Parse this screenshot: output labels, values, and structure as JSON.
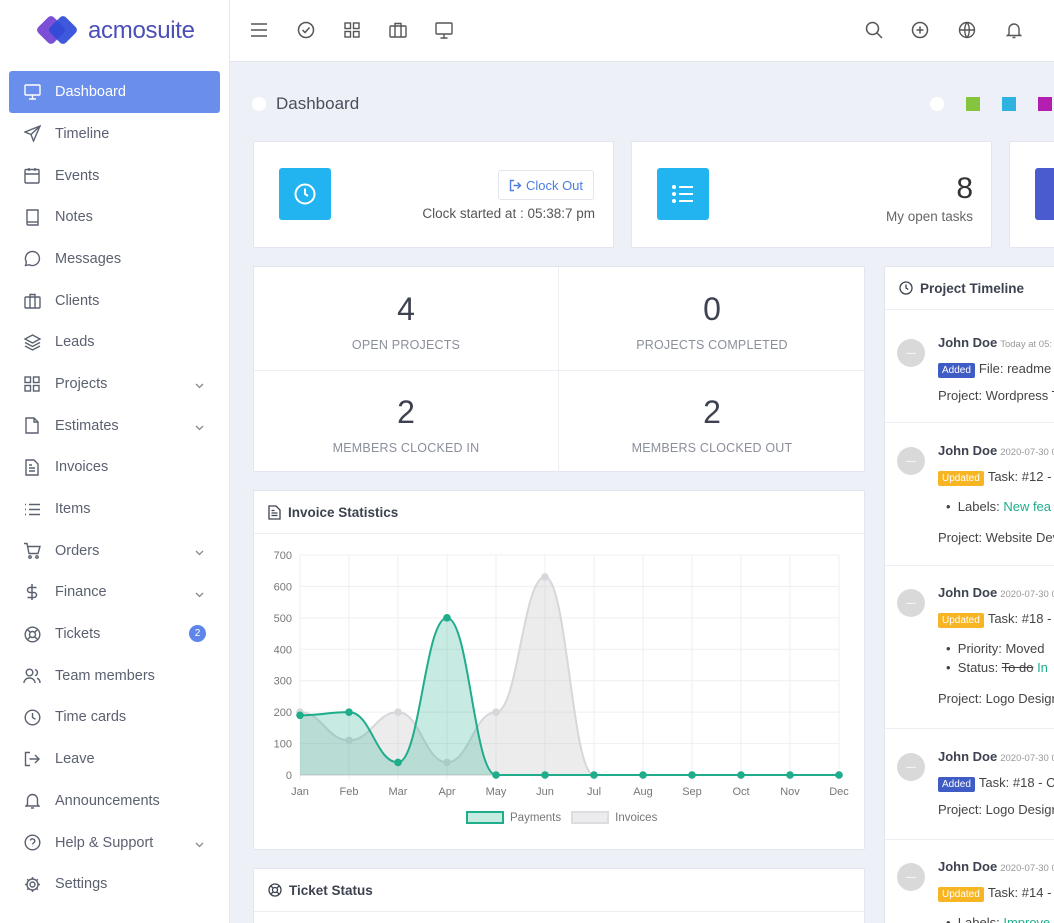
{
  "brand": {
    "name": "acmosuite",
    "colors": [
      "#7b4fd6",
      "#2e4bd8"
    ]
  },
  "sidebar": {
    "items": [
      {
        "label": "Dashboard",
        "icon": "monitor-icon",
        "active": true
      },
      {
        "label": "Timeline",
        "icon": "send-icon"
      },
      {
        "label": "Events",
        "icon": "calendar-icon"
      },
      {
        "label": "Notes",
        "icon": "book-icon"
      },
      {
        "label": "Messages",
        "icon": "chat-icon"
      },
      {
        "label": "Clients",
        "icon": "briefcase-icon"
      },
      {
        "label": "Leads",
        "icon": "layers-icon"
      },
      {
        "label": "Projects",
        "icon": "grid-icon",
        "chevron": true
      },
      {
        "label": "Estimates",
        "icon": "file-icon",
        "chevron": true
      },
      {
        "label": "Invoices",
        "icon": "file-text-icon"
      },
      {
        "label": "Items",
        "icon": "list-icon"
      },
      {
        "label": "Orders",
        "icon": "cart-icon",
        "chevron": true
      },
      {
        "label": "Finance",
        "icon": "dollar-icon",
        "chevron": true
      },
      {
        "label": "Tickets",
        "icon": "lifebuoy-icon",
        "badge": "2"
      },
      {
        "label": "Team members",
        "icon": "users-icon"
      },
      {
        "label": "Time cards",
        "icon": "clock-icon"
      },
      {
        "label": "Leave",
        "icon": "log-out-icon"
      },
      {
        "label": "Announcements",
        "icon": "bell-icon"
      },
      {
        "label": "Help & Support",
        "icon": "help-icon",
        "chevron": true
      },
      {
        "label": "Settings",
        "icon": "settings-icon"
      }
    ]
  },
  "page": {
    "title": "Dashboard",
    "theme_colors": [
      "#ffffff",
      "#86c440",
      "#2eb3e0",
      "#b21fb0"
    ]
  },
  "clock_card": {
    "button": "Clock Out",
    "status": "Clock started at : 05:38:7 pm"
  },
  "tasks_card": {
    "count": "8",
    "label": "My open tasks"
  },
  "stats": [
    {
      "value": "4",
      "label": "OPEN PROJECTS"
    },
    {
      "value": "0",
      "label": "PROJECTS COMPLETED"
    },
    {
      "value": "2",
      "label": "MEMBERS CLOCKED IN"
    },
    {
      "value": "2",
      "label": "MEMBERS CLOCKED OUT"
    }
  ],
  "invoice_stats": {
    "title": "Invoice Statistics"
  },
  "ticket_status": {
    "title": "Ticket Status"
  },
  "chart_data": {
    "type": "area",
    "categories": [
      "Jan",
      "Feb",
      "Mar",
      "Apr",
      "May",
      "Jun",
      "Jul",
      "Aug",
      "Sep",
      "Oct",
      "Nov",
      "Dec"
    ],
    "series": [
      {
        "name": "Payments",
        "values": [
          190,
          200,
          40,
          500,
          0,
          0,
          0,
          0,
          0,
          0,
          0,
          0
        ],
        "color": "#1fad8c"
      },
      {
        "name": "Invoices",
        "values": [
          200,
          110,
          200,
          40,
          200,
          630,
          0,
          0,
          0,
          0,
          0,
          0
        ],
        "color": "#d6d7db"
      }
    ],
    "ylim": [
      0,
      700
    ],
    "yticks": [
      0,
      100,
      200,
      300,
      400,
      500,
      600,
      700
    ],
    "grid": true,
    "legend": "bottom"
  },
  "timeline": {
    "title": "Project Timeline",
    "entries": [
      {
        "name": "John Doe",
        "time": "Today at 05:",
        "tag": "Added",
        "tag_type": "added",
        "text": "File: readme",
        "project": "Project: Wordpress T"
      },
      {
        "name": "John Doe",
        "time": "2020-07-30 0",
        "tag": "Updated",
        "tag_type": "updated",
        "text": "Task: #12 -",
        "bullets": [
          {
            "prefix": "Labels: ",
            "value": "New fea"
          }
        ],
        "project": "Project: Website Dev"
      },
      {
        "name": "John Doe",
        "time": "2020-07-30 0",
        "tag": "Updated",
        "tag_type": "updated",
        "text": "Task: #18 -",
        "bullets": [
          {
            "prefix": "Priority: Moved"
          },
          {
            "prefix": "Status: ",
            "old": "To do",
            "value": "In"
          }
        ],
        "project": "Project: Logo Design"
      },
      {
        "name": "John Doe",
        "time": "2020-07-30 0",
        "tag": "Added",
        "tag_type": "added",
        "text": "Task: #18 - C",
        "project": "Project: Logo Design"
      },
      {
        "name": "John Doe",
        "time": "2020-07-30 0",
        "tag": "Updated",
        "tag_type": "updated",
        "text": "Task: #14 -",
        "bullets": [
          {
            "prefix": "Labels: ",
            "value": "Improve"
          }
        ]
      }
    ]
  }
}
